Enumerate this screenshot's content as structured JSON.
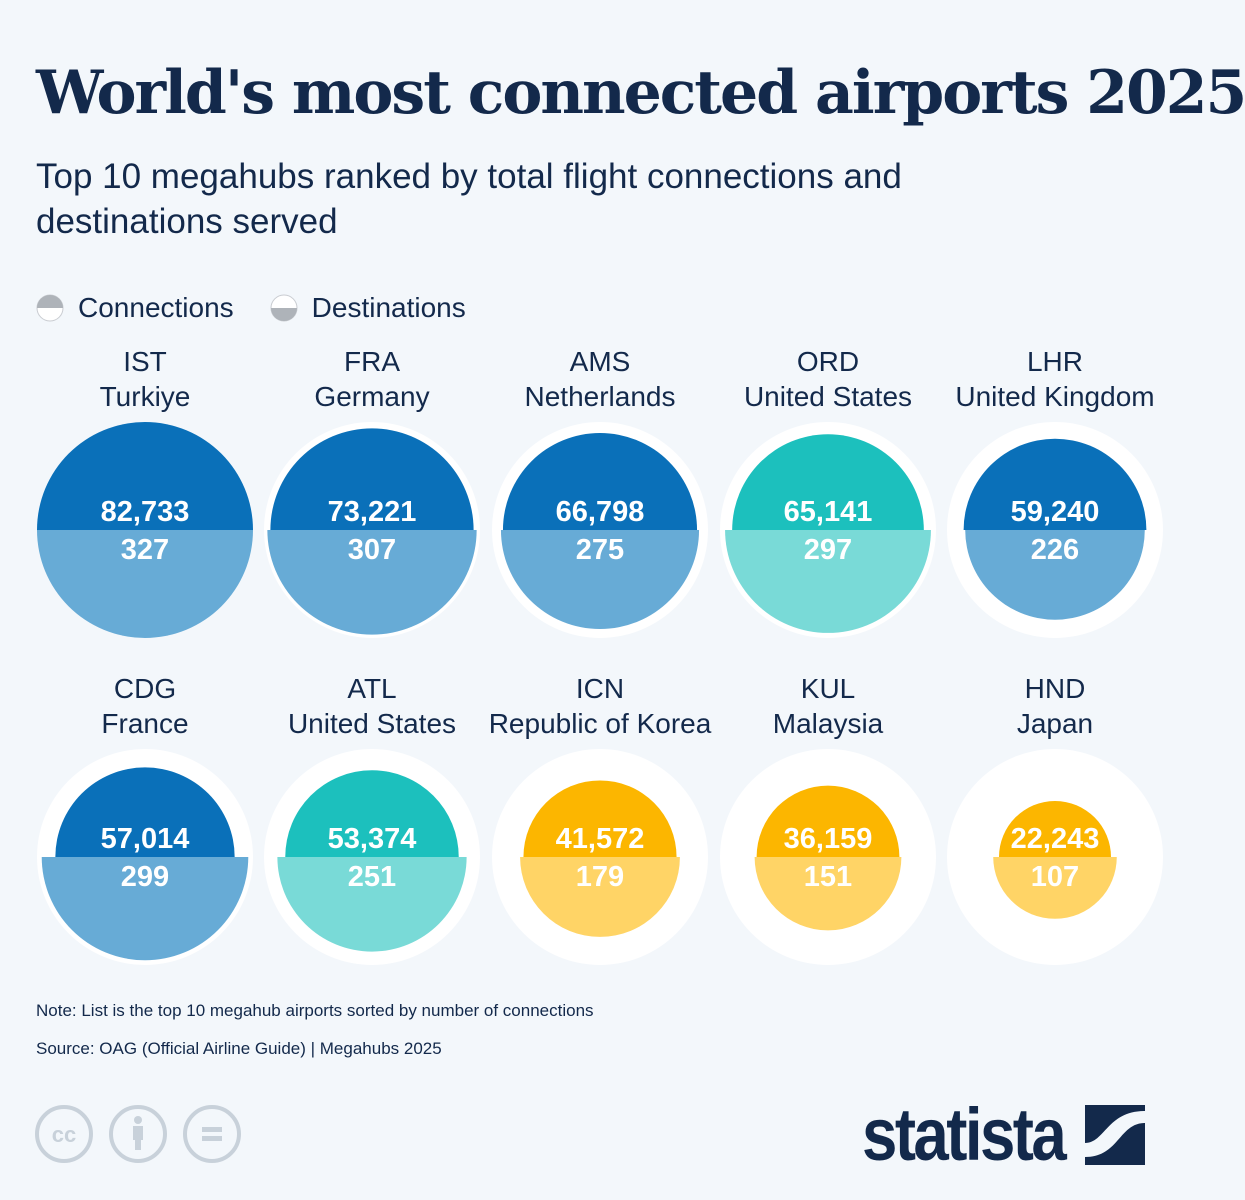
{
  "title": "World's most connected airports 2025",
  "subtitle": "Top 10 megahubs ranked by total flight connections and destinations served",
  "legend": {
    "connections": "Connections",
    "destinations": "Destinations"
  },
  "chart_data": {
    "type": "proportional-semicircles",
    "series": [
      {
        "name": "Connections"
      },
      {
        "name": "Destinations"
      }
    ],
    "items": [
      {
        "code": "IST",
        "country": "Turkiye",
        "connections": 82733,
        "destinations": 327,
        "connections_label": "82,733",
        "destinations_label": "327",
        "color_top": "#0a70b9",
        "color_bottom": "#67abd6"
      },
      {
        "code": "FRA",
        "country": "Germany",
        "connections": 73221,
        "destinations": 307,
        "connections_label": "73,221",
        "destinations_label": "307",
        "color_top": "#0a70b9",
        "color_bottom": "#67abd6"
      },
      {
        "code": "AMS",
        "country": "Netherlands",
        "connections": 66798,
        "destinations": 275,
        "connections_label": "66,798",
        "destinations_label": "275",
        "color_top": "#0a70b9",
        "color_bottom": "#67abd6"
      },
      {
        "code": "ORD",
        "country": "United States",
        "connections": 65141,
        "destinations": 297,
        "connections_label": "65,141",
        "destinations_label": "297",
        "color_top": "#1cc0bd",
        "color_bottom": "#79dad7"
      },
      {
        "code": "LHR",
        "country": "United Kingdom",
        "connections": 59240,
        "destinations": 226,
        "connections_label": "59,240",
        "destinations_label": "226",
        "color_top": "#0a70b9",
        "color_bottom": "#67abd6"
      },
      {
        "code": "CDG",
        "country": "France",
        "connections": 57014,
        "destinations": 299,
        "connections_label": "57,014",
        "destinations_label": "299",
        "color_top": "#0a70b9",
        "color_bottom": "#67abd6"
      },
      {
        "code": "ATL",
        "country": "United States",
        "connections": 53374,
        "destinations": 251,
        "connections_label": "53,374",
        "destinations_label": "251",
        "color_top": "#1cc0bd",
        "color_bottom": "#79dad7"
      },
      {
        "code": "ICN",
        "country": "Republic of Korea",
        "connections": 41572,
        "destinations": 179,
        "connections_label": "41,572",
        "destinations_label": "179",
        "color_top": "#fcb600",
        "color_bottom": "#ffd466"
      },
      {
        "code": "KUL",
        "country": "Malaysia",
        "connections": 36159,
        "destinations": 151,
        "connections_label": "36,159",
        "destinations_label": "151",
        "color_top": "#fcb600",
        "color_bottom": "#ffd466"
      },
      {
        "code": "HND",
        "country": "Japan",
        "connections": 22243,
        "destinations": 107,
        "connections_label": "22,243",
        "destinations_label": "107",
        "color_top": "#fcb600",
        "color_bottom": "#ffd466"
      }
    ]
  },
  "footer": {
    "note": "Note: List is the top 10 megahub airports sorted by number of connections",
    "source": "Source: OAG (Official Airline Guide) | Megahubs 2025",
    "logo": "statista",
    "icons": [
      "cc-icon",
      "attribution-icon",
      "no-derivatives-icon"
    ]
  }
}
